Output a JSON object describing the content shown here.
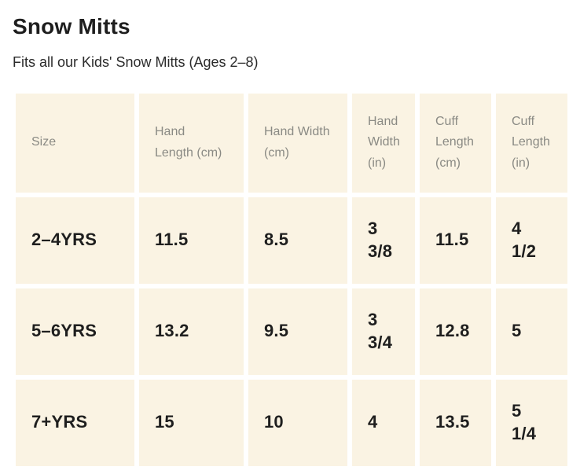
{
  "page": {
    "title": "Snow Mitts",
    "subtitle": "Fits all our Kids' Snow Mitts (Ages 2–8)"
  },
  "table": {
    "headers": [
      "Size",
      "Hand Length (cm)",
      "Hand Width (cm)",
      "Hand Width (in)",
      "Cuff Length (cm)",
      "Cuff Length (in)"
    ],
    "rows": [
      {
        "cells": [
          "2–4YRS",
          "11.5",
          "8.5",
          "3 3/8",
          "11.5",
          "4 1/2"
        ]
      },
      {
        "cells": [
          "5–6YRS",
          "13.2",
          "9.5",
          "3 3/4",
          "12.8",
          "5"
        ]
      },
      {
        "cells": [
          "7+YRS",
          "15",
          "10",
          "4",
          "13.5",
          "5 1/4"
        ]
      }
    ]
  },
  "colors": {
    "page_background": "#ffffff",
    "cell_background": "#faf3e3",
    "header_text": "#8a8a84",
    "body_text": "#1e1e1e"
  }
}
